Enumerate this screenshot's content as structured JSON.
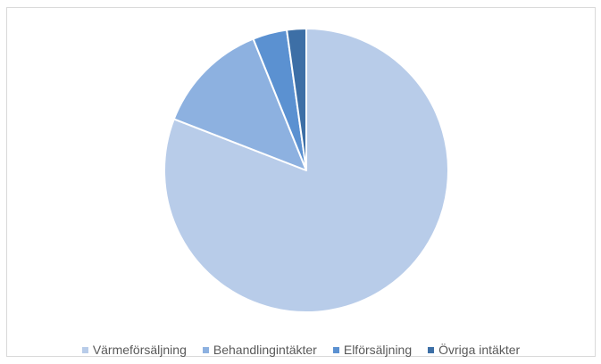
{
  "chart_data": {
    "type": "pie",
    "title": "",
    "categories": [
      "Värmeförsäljning",
      "Behandlingintäkter",
      "Elförsäljning",
      "Övriga intäkter"
    ],
    "values": [
      80.9,
      13.0,
      3.9,
      2.2
    ],
    "colors": [
      "#b8cce9",
      "#8db1e0",
      "#5b91d1",
      "#3d6fa6"
    ],
    "legend_position": "bottom"
  }
}
